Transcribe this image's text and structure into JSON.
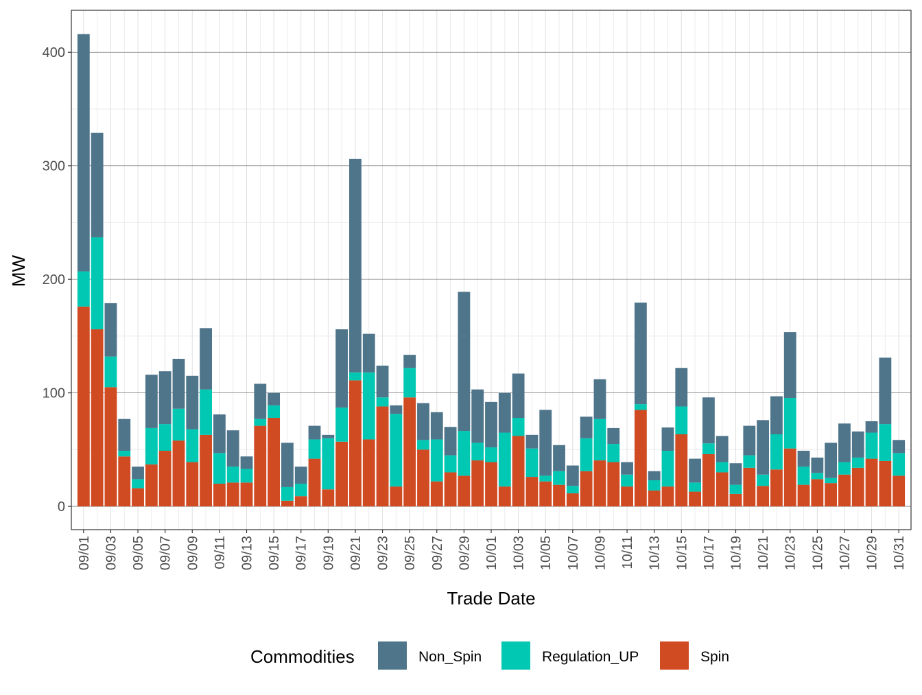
{
  "chart_data": {
    "type": "bar",
    "stacked": true,
    "title": "",
    "xlabel": "Trade Date",
    "ylabel": "MW",
    "ylim": [
      -20.5,
      437
    ],
    "yticks": [
      0,
      100,
      200,
      300,
      400
    ],
    "grid": true,
    "legend": {
      "title": "Commodities",
      "position": "bottom"
    },
    "categories": [
      "09/01",
      "09/02",
      "09/03",
      "09/04",
      "09/05",
      "09/06",
      "09/07",
      "09/08",
      "09/09",
      "09/10",
      "09/11",
      "09/12",
      "09/13",
      "09/14",
      "09/15",
      "09/16",
      "09/17",
      "09/18",
      "09/19",
      "09/20",
      "09/21",
      "09/22",
      "09/23",
      "09/24",
      "09/25",
      "09/26",
      "09/27",
      "09/28",
      "09/29",
      "09/30",
      "10/01",
      "10/02",
      "10/03",
      "10/04",
      "10/05",
      "10/06",
      "10/07",
      "10/08",
      "10/09",
      "10/10",
      "10/11",
      "10/12",
      "10/13",
      "10/14",
      "10/15",
      "10/16",
      "10/17",
      "10/18",
      "10/19",
      "10/20",
      "10/21",
      "10/22",
      "10/23",
      "10/24",
      "10/25",
      "10/26",
      "10/27",
      "10/28",
      "10/29",
      "10/30",
      "10/31"
    ],
    "series": [
      {
        "name": "Spin",
        "color": "#d04a22",
        "values": [
          176,
          156,
          105,
          44,
          16,
          37,
          49,
          58,
          39,
          63,
          20,
          21,
          21,
          71,
          78,
          5,
          9,
          42,
          15,
          57,
          111,
          59,
          88,
          17.5,
          96,
          50,
          22,
          30,
          27,
          40.5,
          39,
          17.5,
          62,
          26,
          22,
          19,
          11.5,
          31,
          40.5,
          39,
          17.5,
          85,
          14,
          17.5,
          63.5,
          13,
          46,
          30,
          11,
          34,
          18,
          32.5,
          51,
          19,
          24,
          20.5,
          28,
          34,
          42,
          40,
          27
        ]
      },
      {
        "name": "Regulation_UP",
        "color": "#00c8b3",
        "values": [
          31,
          81,
          27,
          5,
          8,
          32,
          23.5,
          28,
          29,
          40,
          27,
          14,
          12,
          6,
          11,
          12,
          11,
          17,
          45,
          30,
          7,
          59,
          8,
          64,
          26,
          8.5,
          37,
          15,
          39.5,
          15.5,
          13,
          47.5,
          16,
          25,
          5,
          12,
          6.5,
          29,
          36.5,
          16,
          10.5,
          5,
          9,
          31.5,
          24.5,
          8,
          9.5,
          9,
          8,
          11,
          10,
          31,
          44.5,
          16,
          5.5,
          4.5,
          11,
          9,
          23,
          32.5,
          20
        ]
      },
      {
        "name": "Non_Spin",
        "color": "#4f758b",
        "values": [
          209,
          92,
          47,
          28,
          11,
          47,
          46.5,
          44,
          47,
          54,
          34,
          32,
          11,
          31,
          11,
          39,
          15,
          12,
          3,
          69,
          188,
          34,
          28,
          7.5,
          11.5,
          32.5,
          24,
          25,
          122.5,
          47,
          40,
          35,
          39,
          12,
          58,
          23,
          18,
          19,
          35,
          14,
          11,
          89.5,
          8,
          20.5,
          34,
          21,
          40.5,
          23,
          19,
          26,
          48,
          33.5,
          58,
          14,
          13.5,
          31,
          34,
          23,
          10,
          58.5,
          11.5
        ]
      }
    ],
    "legend_order": [
      "Non_Spin",
      "Regulation_UP",
      "Spin"
    ]
  }
}
